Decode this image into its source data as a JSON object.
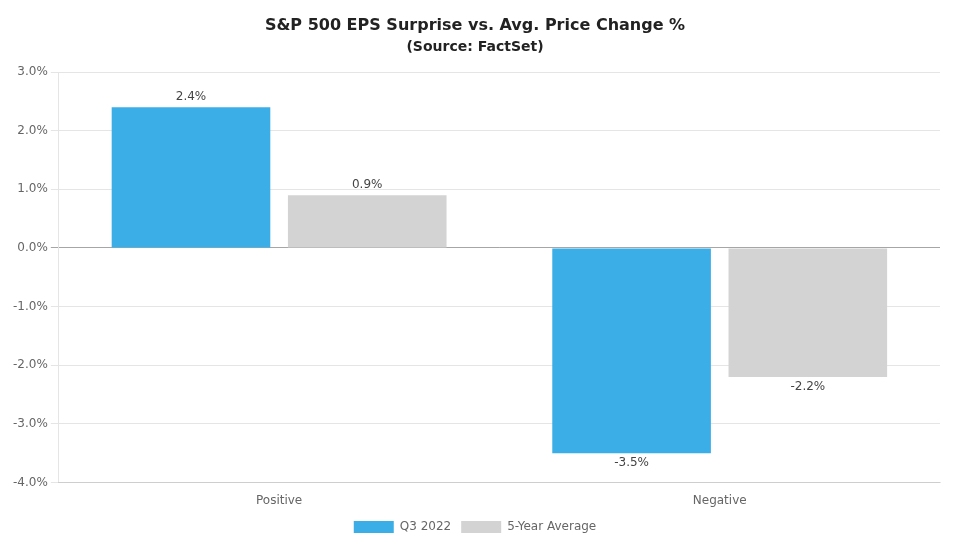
{
  "chart_data": {
    "type": "bar",
    "title": "S&P 500 EPS Surprise vs. Avg. Price Change %",
    "subtitle": "(Source: FactSet)",
    "categories": [
      "Positive",
      "Negative"
    ],
    "series": [
      {
        "name": "Q3 2022",
        "color": "#3BAEE8",
        "values": [
          2.4,
          -3.5
        ],
        "value_labels": [
          "2.4%",
          "-3.5%"
        ]
      },
      {
        "name": "5-Year Average",
        "color": "#D3D3D3",
        "values": [
          0.9,
          -2.2
        ],
        "value_labels": [
          "0.9%",
          "-2.2%"
        ]
      }
    ],
    "ylim": [
      -4.0,
      3.0
    ],
    "yticks": [
      {
        "value": -4.0,
        "label": "-4.0%"
      },
      {
        "value": -3.0,
        "label": "-3.0%"
      },
      {
        "value": -2.0,
        "label": "-2.0%"
      },
      {
        "value": -1.0,
        "label": "-1.0%"
      },
      {
        "value": 0.0,
        "label": "0.0%"
      },
      {
        "value": 1.0,
        "label": "1.0%"
      },
      {
        "value": 2.0,
        "label": "2.0%"
      },
      {
        "value": 3.0,
        "label": "3.0%"
      }
    ],
    "grid": true,
    "legend": "bottom",
    "data_labels": true
  }
}
